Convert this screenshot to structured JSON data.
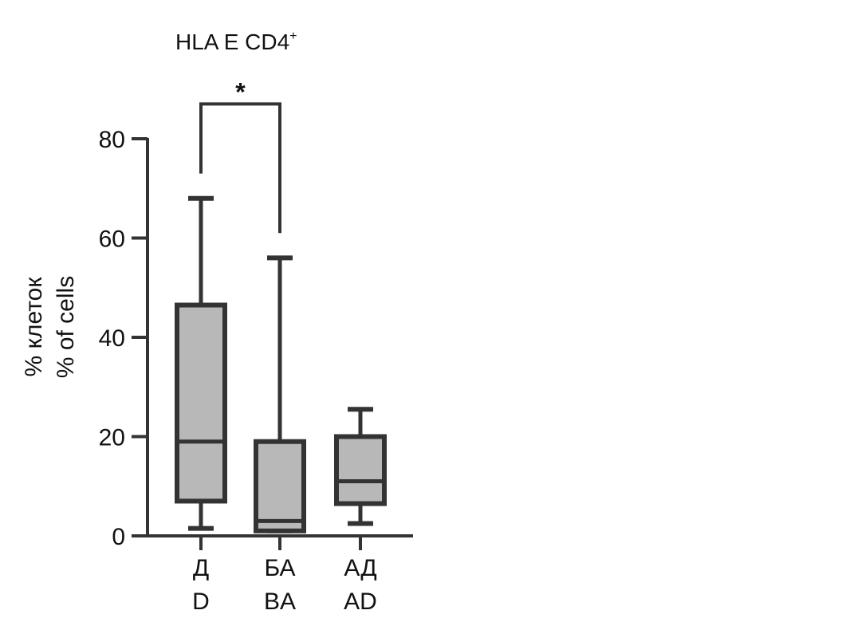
{
  "chart_data": {
    "type": "box",
    "title": "HLA E CD4",
    "title_superscript": "+",
    "ylabel_lines": [
      "% клеток",
      "% of cells"
    ],
    "ylim": [
      0,
      80
    ],
    "yticks": [
      0,
      20,
      40,
      60,
      80
    ],
    "categories": [
      {
        "line1": "Д",
        "line2": "D"
      },
      {
        "line1": "БА",
        "line2": "BA"
      },
      {
        "line1": "АД",
        "line2": "AD"
      }
    ],
    "boxes": [
      {
        "min": 1.5,
        "q1": 7,
        "median": 19,
        "q3": 46.5,
        "max": 68
      },
      {
        "min": 1,
        "q1": 1,
        "median": 3,
        "q3": 19,
        "max": 56
      },
      {
        "min": 2.5,
        "q1": 6.5,
        "median": 11,
        "q3": 20,
        "max": 25.5
      }
    ],
    "significance": {
      "from": 0,
      "to": 1,
      "label": "*",
      "left_drop_to": 73,
      "right_drop_to": 61,
      "bar_level": 87
    },
    "colors": {
      "box_fill": "#b8b8b8",
      "stroke": "#333333"
    }
  }
}
